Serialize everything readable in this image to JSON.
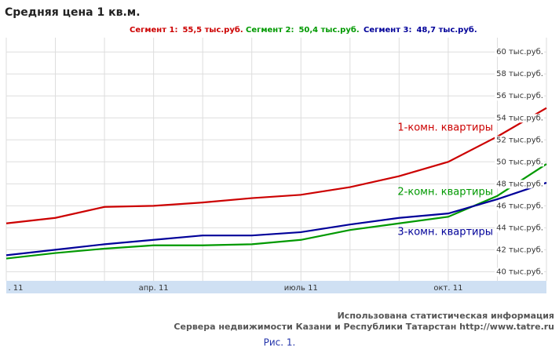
{
  "chart_data": {
    "type": "line",
    "title": "Средняя цена 1 кв.м.",
    "categories": [
      ". 11",
      null,
      null,
      "апр. 11",
      null,
      null,
      "июль 11",
      null,
      null,
      "окт. 11",
      null,
      null
    ],
    "series": [
      {
        "name": "Сегмент 1:",
        "summary": "55,5 тыс.руб.",
        "color": "#cc0000",
        "label": "1-комн. квартиры",
        "values": [
          44.4,
          44.9,
          45.9,
          46.0,
          46.3,
          46.7,
          47.0,
          47.7,
          48.7,
          50.0,
          52.3,
          54.9
        ]
      },
      {
        "name": "Сегмент 2:",
        "summary": "50,4 тыс.руб.",
        "color": "#009900",
        "label": "2-комн. квартиры",
        "values": [
          41.2,
          41.7,
          42.1,
          42.4,
          42.4,
          42.5,
          42.9,
          43.8,
          44.4,
          45.0,
          46.9,
          49.8
        ]
      },
      {
        "name": "Сегмент 3:",
        "summary": "48,7 тыс.руб.",
        "color": "#000099",
        "label": "3-комн. квартиры",
        "values": [
          41.5,
          42.0,
          42.5,
          42.9,
          43.3,
          43.3,
          43.6,
          44.3,
          44.9,
          45.3,
          46.6,
          48.1
        ]
      }
    ],
    "ylim": [
      39.6,
      61.3
    ],
    "yticks": [
      {
        "value": 40,
        "label": "40 тыс.руб."
      },
      {
        "value": 42,
        "label": "42 тыс.руб."
      },
      {
        "value": 44,
        "label": "44 тыс.руб."
      },
      {
        "value": 46,
        "label": "46 тыс.руб."
      },
      {
        "value": 48,
        "label": "48 тыс.руб."
      },
      {
        "value": 50,
        "label": "50 тыс.руб."
      },
      {
        "value": 52,
        "label": "52 тыс.руб."
      },
      {
        "value": 54,
        "label": "54 тыс.руб."
      },
      {
        "value": 56,
        "label": "56 тыс.руб."
      },
      {
        "value": 58,
        "label": "58 тыс.руб."
      },
      {
        "value": 60,
        "label": "60 тыс.руб."
      }
    ],
    "grid": true,
    "footer": [
      "Использована статистическая информация",
      "Сервера недвижимости Казани и Республики Татарстан http://www.tatre.ru"
    ],
    "caption": "Рис. 1."
  }
}
